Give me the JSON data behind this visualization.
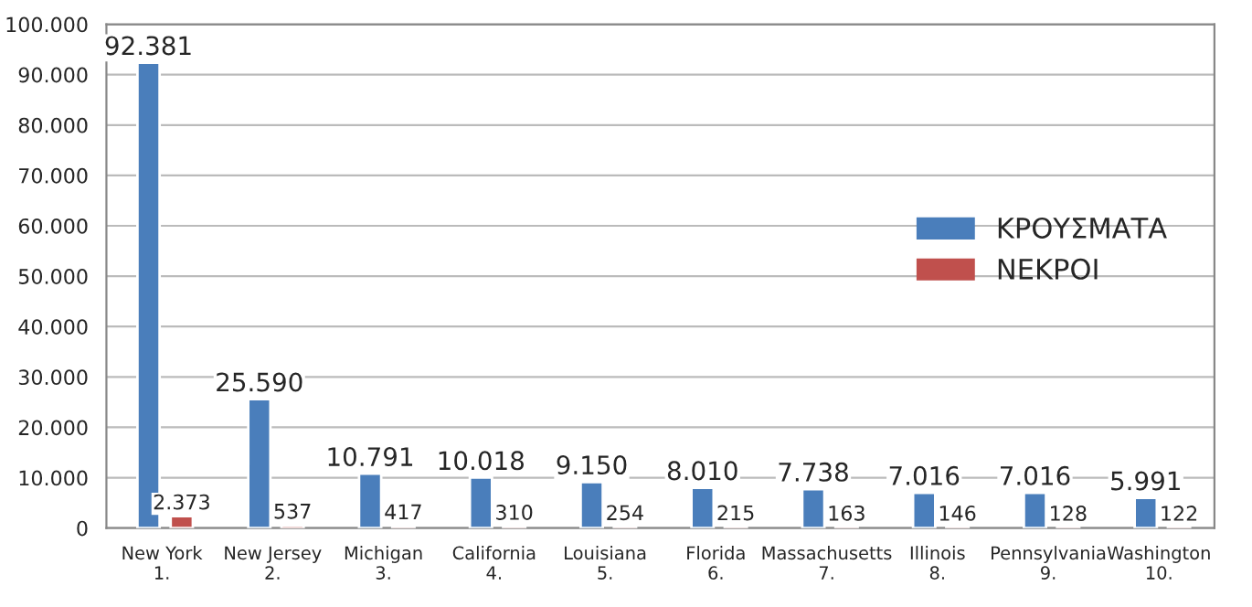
{
  "chart_data": {
    "type": "bar",
    "categories": [
      "New York\n1.",
      "New Jersey\n2.",
      "Michigan\n3.",
      "California\n4.",
      "Louisiana\n5.",
      "Florida\n6.",
      "Massachusetts\n7.",
      "Illinois\n8.",
      "Pennsylvania\n9.",
      "Washington\n10."
    ],
    "series": [
      {
        "name": "ΚΡΟΥΣΜΑΤΑ",
        "color": "#4a7ebb",
        "values": [
          92381,
          25590,
          10791,
          10018,
          9150,
          8010,
          7738,
          7016,
          7016,
          5991
        ],
        "value_labels": [
          "92.381",
          "25.590",
          "10.791",
          "10.018",
          "9.150",
          "8.010",
          "7.738",
          "7.016",
          "7.016",
          "5.991"
        ]
      },
      {
        "name": "ΝΕΚΡΟΙ",
        "color": "#c0504d",
        "values": [
          2373,
          537,
          417,
          310,
          254,
          215,
          163,
          146,
          128,
          122
        ],
        "value_labels": [
          "2.373",
          "537",
          "417",
          "310",
          "254",
          "215",
          "163",
          "146",
          "128",
          "122"
        ]
      }
    ],
    "ylim": [
      0,
      100000
    ],
    "yticks": [
      {
        "value": 0,
        "label": "0"
      },
      {
        "value": 10000,
        "label": "10.000"
      },
      {
        "value": 20000,
        "label": "20.000"
      },
      {
        "value": 30000,
        "label": "30.000"
      },
      {
        "value": 40000,
        "label": "40.000"
      },
      {
        "value": 50000,
        "label": "50.000"
      },
      {
        "value": 60000,
        "label": "60.000"
      },
      {
        "value": 70000,
        "label": "70.000"
      },
      {
        "value": 80000,
        "label": "80.000"
      },
      {
        "value": 90000,
        "label": "90.000"
      },
      {
        "value": 100000,
        "label": "100.000"
      }
    ],
    "grid": "y",
    "legend": "right"
  }
}
